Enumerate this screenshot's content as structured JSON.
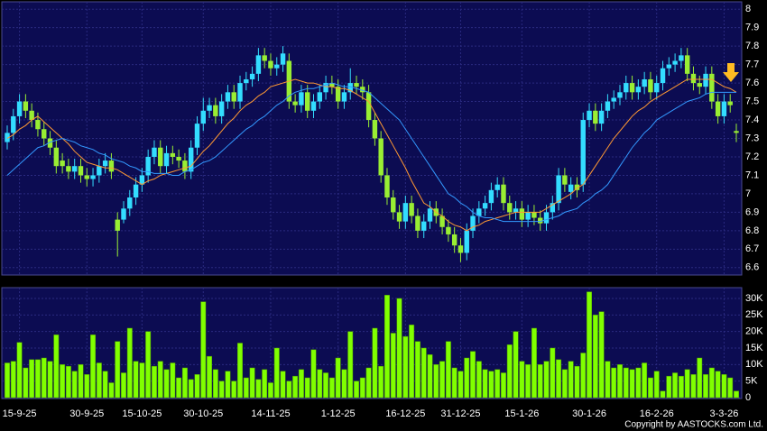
{
  "chart_data": {
    "type": "candlestick",
    "categories": [
      null,
      null,
      "15-9-25",
      null,
      null,
      null,
      null,
      null,
      null,
      null,
      null,
      null,
      null,
      "30-9-25",
      null,
      null,
      null,
      null,
      null,
      null,
      null,
      null,
      "15-10-25",
      null,
      null,
      null,
      null,
      null,
      null,
      null,
      null,
      null,
      "30-10-25",
      null,
      null,
      null,
      null,
      null,
      null,
      null,
      null,
      null,
      null,
      "14-11-25",
      null,
      null,
      null,
      null,
      null,
      null,
      null,
      null,
      null,
      null,
      "1-12-25",
      null,
      null,
      null,
      null,
      null,
      null,
      null,
      null,
      null,
      null,
      "16-12-25",
      null,
      null,
      null,
      null,
      null,
      null,
      null,
      null,
      "31-12-25",
      null,
      null,
      null,
      null,
      null,
      null,
      null,
      null,
      null,
      "15-1-26",
      null,
      null,
      null,
      null,
      null,
      null,
      null,
      null,
      null,
      null,
      "30-1-26",
      null,
      null,
      null,
      null,
      null,
      null,
      null,
      null,
      null,
      null,
      "16-2-26",
      null,
      null,
      null,
      null,
      null,
      null,
      null,
      null,
      null,
      null,
      "3-3-26",
      null,
      null
    ],
    "ohlc": [
      [
        7.28,
        7.37,
        7.24,
        7.33
      ],
      [
        7.33,
        7.46,
        7.29,
        7.42
      ],
      [
        7.42,
        7.54,
        7.38,
        7.5
      ],
      [
        7.5,
        7.54,
        7.41,
        7.45
      ],
      [
        7.45,
        7.49,
        7.36,
        7.4
      ],
      [
        7.4,
        7.44,
        7.31,
        7.35
      ],
      [
        7.35,
        7.39,
        7.26,
        7.3
      ],
      [
        7.3,
        7.34,
        7.21,
        7.25
      ],
      [
        7.25,
        7.29,
        7.11,
        7.15
      ],
      [
        7.18,
        7.22,
        7.11,
        7.15
      ],
      [
        7.15,
        7.19,
        7.08,
        7.12
      ],
      [
        7.12,
        7.19,
        7.08,
        7.15
      ],
      [
        7.15,
        7.19,
        7.06,
        7.1
      ],
      [
        7.1,
        7.14,
        7.04,
        7.08
      ],
      [
        7.08,
        7.14,
        7.04,
        7.1
      ],
      [
        7.1,
        7.19,
        7.06,
        7.15
      ],
      [
        7.15,
        7.22,
        7.11,
        7.18
      ],
      [
        7.18,
        7.22,
        7.08,
        7.12
      ],
      [
        6.86,
        6.9,
        6.66,
        6.8
      ],
      [
        6.86,
        6.96,
        6.84,
        6.92
      ],
      [
        6.92,
        7.02,
        6.88,
        6.98
      ],
      [
        6.98,
        7.09,
        6.94,
        7.05
      ],
      [
        7.05,
        7.14,
        7.01,
        7.1
      ],
      [
        7.1,
        7.24,
        7.06,
        7.2
      ],
      [
        7.2,
        7.29,
        7.16,
        7.25
      ],
      [
        7.25,
        7.29,
        7.11,
        7.15
      ],
      [
        7.15,
        7.26,
        7.11,
        7.22
      ],
      [
        7.22,
        7.26,
        7.16,
        7.2
      ],
      [
        7.2,
        7.24,
        7.14,
        7.18
      ],
      [
        7.18,
        7.22,
        7.08,
        7.12
      ],
      [
        7.12,
        7.29,
        7.08,
        7.25
      ],
      [
        7.25,
        7.42,
        7.21,
        7.38
      ],
      [
        7.38,
        7.52,
        7.34,
        7.45
      ],
      [
        7.45,
        7.52,
        7.41,
        7.48
      ],
      [
        7.48,
        7.52,
        7.38,
        7.42
      ],
      [
        7.42,
        7.54,
        7.38,
        7.5
      ],
      [
        7.5,
        7.59,
        7.46,
        7.55
      ],
      [
        7.55,
        7.59,
        7.46,
        7.5
      ],
      [
        7.5,
        7.64,
        7.46,
        7.6
      ],
      [
        7.6,
        7.66,
        7.56,
        7.62
      ],
      [
        7.62,
        7.69,
        7.58,
        7.65
      ],
      [
        7.65,
        7.79,
        7.61,
        7.75
      ],
      [
        7.75,
        7.79,
        7.68,
        7.72
      ],
      [
        7.72,
        7.76,
        7.64,
        7.68
      ],
      [
        7.68,
        7.74,
        7.64,
        7.7
      ],
      [
        7.7,
        7.8,
        7.66,
        7.76
      ],
      [
        7.72,
        7.76,
        7.46,
        7.5
      ],
      [
        7.5,
        7.54,
        7.44,
        7.48
      ],
      [
        7.48,
        7.59,
        7.44,
        7.55
      ],
      [
        7.55,
        7.59,
        7.41,
        7.45
      ],
      [
        7.45,
        7.54,
        7.41,
        7.5
      ],
      [
        7.5,
        7.59,
        7.46,
        7.55
      ],
      [
        7.55,
        7.64,
        7.51,
        7.6
      ],
      [
        7.6,
        7.64,
        7.54,
        7.58
      ],
      [
        7.58,
        7.62,
        7.46,
        7.5
      ],
      [
        7.5,
        7.59,
        7.46,
        7.55
      ],
      [
        7.55,
        7.68,
        7.51,
        7.6
      ],
      [
        7.6,
        7.64,
        7.54,
        7.58
      ],
      [
        7.58,
        7.62,
        7.51,
        7.55
      ],
      [
        7.55,
        7.59,
        7.36,
        7.4
      ],
      [
        7.4,
        7.44,
        7.26,
        7.3
      ],
      [
        7.3,
        7.34,
        7.06,
        7.1
      ],
      [
        7.1,
        7.14,
        6.94,
        6.98
      ],
      [
        6.98,
        7.02,
        6.86,
        6.9
      ],
      [
        6.9,
        6.94,
        6.81,
        6.85
      ],
      [
        6.85,
        6.99,
        6.81,
        6.95
      ],
      [
        6.95,
        6.99,
        6.84,
        6.88
      ],
      [
        6.88,
        6.92,
        6.76,
        6.8
      ],
      [
        6.8,
        6.89,
        6.76,
        6.85
      ],
      [
        6.85,
        6.96,
        6.81,
        6.92
      ],
      [
        6.92,
        6.96,
        6.84,
        6.88
      ],
      [
        6.88,
        6.92,
        6.78,
        6.82
      ],
      [
        6.82,
        6.86,
        6.74,
        6.78
      ],
      [
        6.78,
        6.82,
        6.68,
        6.72
      ],
      [
        6.72,
        6.76,
        6.63,
        6.68
      ],
      [
        6.68,
        6.84,
        6.64,
        6.8
      ],
      [
        6.8,
        6.92,
        6.76,
        6.88
      ],
      [
        6.88,
        6.96,
        6.84,
        6.92
      ],
      [
        6.92,
        6.99,
        6.88,
        6.95
      ],
      [
        6.95,
        7.06,
        6.91,
        7.02
      ],
      [
        7.02,
        7.09,
        6.98,
        7.05
      ],
      [
        7.05,
        7.09,
        6.91,
        6.95
      ],
      [
        6.95,
        6.99,
        6.86,
        6.9
      ],
      [
        6.9,
        6.96,
        6.86,
        6.92
      ],
      [
        6.92,
        6.96,
        6.82,
        6.86
      ],
      [
        6.86,
        6.94,
        6.82,
        6.9
      ],
      [
        6.9,
        6.94,
        6.83,
        6.87
      ],
      [
        6.87,
        6.91,
        6.8,
        6.84
      ],
      [
        6.84,
        6.94,
        6.8,
        6.9
      ],
      [
        6.9,
        6.99,
        6.86,
        6.95
      ],
      [
        6.95,
        7.14,
        6.91,
        7.1
      ],
      [
        7.1,
        7.14,
        7.01,
        7.05
      ],
      [
        7.01,
        7.09,
        6.97,
        7.05
      ],
      [
        7.05,
        7.09,
        6.98,
        7.02
      ],
      [
        7.05,
        7.44,
        7.01,
        7.4
      ],
      [
        7.4,
        7.49,
        7.36,
        7.45
      ],
      [
        7.45,
        7.49,
        7.34,
        7.38
      ],
      [
        7.38,
        7.49,
        7.34,
        7.45
      ],
      [
        7.45,
        7.54,
        7.41,
        7.5
      ],
      [
        7.5,
        7.56,
        7.46,
        7.52
      ],
      [
        7.52,
        7.59,
        7.48,
        7.55
      ],
      [
        7.55,
        7.64,
        7.51,
        7.6
      ],
      [
        7.6,
        7.64,
        7.51,
        7.55
      ],
      [
        7.55,
        7.62,
        7.51,
        7.58
      ],
      [
        7.58,
        7.66,
        7.54,
        7.62
      ],
      [
        7.62,
        7.66,
        7.51,
        7.55
      ],
      [
        7.55,
        7.64,
        7.51,
        7.6
      ],
      [
        7.6,
        7.72,
        7.56,
        7.68
      ],
      [
        7.68,
        7.74,
        7.64,
        7.7
      ],
      [
        7.7,
        7.76,
        7.66,
        7.72
      ],
      [
        7.72,
        7.79,
        7.68,
        7.75
      ],
      [
        7.75,
        7.79,
        7.61,
        7.65
      ],
      [
        7.65,
        7.69,
        7.56,
        7.6
      ],
      [
        7.6,
        7.64,
        7.54,
        7.58
      ],
      [
        7.58,
        7.69,
        7.54,
        7.65
      ],
      [
        7.65,
        7.69,
        7.46,
        7.5
      ],
      [
        7.5,
        7.54,
        7.38,
        7.42
      ],
      [
        7.42,
        7.54,
        7.38,
        7.5
      ],
      [
        7.5,
        7.54,
        7.44,
        7.48
      ],
      [
        7.34,
        7.38,
        7.28,
        7.33
      ]
    ],
    "up_color": "#33ddff",
    "down_color": "#99ee33",
    "lines": [
      {
        "color": "#ff9933",
        "values": [
          7.3,
          7.32,
          7.35,
          7.37,
          7.4,
          7.42,
          7.39,
          7.36,
          7.33,
          7.3,
          7.27,
          7.23,
          7.2,
          7.17,
          7.16,
          7.15,
          7.14,
          7.14,
          7.13,
          7.11,
          7.09,
          7.07,
          7.05,
          7.07,
          7.08,
          7.1,
          7.11,
          7.12,
          7.13,
          7.14,
          7.15,
          7.19,
          7.23,
          7.26,
          7.3,
          7.34,
          7.38,
          7.41,
          7.45,
          7.48,
          7.5,
          7.53,
          7.55,
          7.58,
          7.59,
          7.6,
          7.61,
          7.62,
          7.61,
          7.6,
          7.6,
          7.59,
          7.58,
          7.58,
          7.57,
          7.57,
          7.56,
          7.54,
          7.52,
          7.5,
          7.44,
          7.38,
          7.32,
          7.26,
          7.2,
          7.14,
          7.07,
          7.01,
          6.95,
          6.93,
          6.9,
          6.88,
          6.85,
          6.83,
          6.82,
          6.8,
          6.82,
          6.83,
          6.85,
          6.86,
          6.87,
          6.88,
          6.89,
          6.9,
          6.9,
          6.9,
          6.9,
          6.9,
          6.92,
          6.94,
          6.96,
          6.98,
          7.0,
          7.03,
          7.05,
          7.1,
          7.15,
          7.2,
          7.25,
          7.3,
          7.34,
          7.38,
          7.42,
          7.45,
          7.47,
          7.5,
          7.52,
          7.54,
          7.56,
          7.58,
          7.6,
          7.62,
          7.62,
          7.62,
          7.62,
          7.62,
          7.6,
          7.58,
          7.57,
          7.55
        ]
      },
      {
        "color": "#3399ff",
        "values": [
          7.1,
          7.13,
          7.16,
          7.19,
          7.22,
          7.25,
          7.26,
          7.28,
          7.29,
          7.3,
          7.29,
          7.28,
          7.26,
          7.25,
          7.24,
          7.22,
          7.21,
          7.19,
          7.18,
          7.17,
          7.15,
          7.14,
          7.12,
          7.12,
          7.11,
          7.11,
          7.11,
          7.1,
          7.1,
          7.12,
          7.13,
          7.15,
          7.17,
          7.18,
          7.2,
          7.23,
          7.26,
          7.29,
          7.32,
          7.35,
          7.37,
          7.4,
          7.42,
          7.45,
          7.48,
          7.5,
          7.53,
          7.55,
          7.56,
          7.57,
          7.57,
          7.58,
          7.59,
          7.6,
          7.59,
          7.58,
          7.58,
          7.57,
          7.56,
          7.55,
          7.52,
          7.49,
          7.46,
          7.43,
          7.4,
          7.35,
          7.3,
          7.25,
          7.2,
          7.15,
          7.1,
          7.05,
          7.0,
          6.98,
          6.95,
          6.93,
          6.9,
          6.88,
          6.87,
          6.87,
          6.86,
          6.85,
          6.85,
          6.85,
          6.85,
          6.85,
          6.85,
          6.85,
          6.86,
          6.87,
          6.88,
          6.9,
          6.91,
          6.92,
          6.95,
          6.97,
          7.0,
          7.02,
          7.05,
          7.1,
          7.15,
          7.2,
          7.25,
          7.29,
          7.33,
          7.36,
          7.4,
          7.42,
          7.44,
          7.46,
          7.48,
          7.5,
          7.51,
          7.52,
          7.54,
          7.55,
          7.55,
          7.55,
          7.55,
          7.55
        ]
      }
    ],
    "ylim": [
      6.56,
      8.04
    ],
    "yticks": [
      8,
      7.9,
      7.8,
      7.7,
      7.6,
      7.5,
      7.4,
      7.3,
      7.2,
      7.1,
      7,
      6.9,
      6.8,
      6.7,
      6.6
    ],
    "grid": true,
    "volume": {
      "color": "#80ff00",
      "values": [
        10500,
        11000,
        16700,
        9000,
        11500,
        11500,
        12000,
        11000,
        19000,
        10000,
        9500,
        8000,
        10000,
        7000,
        19000,
        10500,
        8000,
        4500,
        17000,
        7500,
        21000,
        11000,
        10500,
        20000,
        9500,
        11000,
        8500,
        10500,
        6000,
        9000,
        5500,
        7000,
        29000,
        12500,
        8500,
        5000,
        8000,
        5000,
        16500,
        6000,
        9000,
        5500,
        8500,
        4500,
        15000,
        8000,
        5000,
        6500,
        8500,
        6000,
        14500,
        8500,
        7500,
        6000,
        12000,
        8500,
        20000,
        5000,
        6000,
        9000,
        21000,
        9500,
        31000,
        19500,
        30000,
        18500,
        22000,
        17000,
        15000,
        13000,
        10000,
        11000,
        17000,
        9000,
        8000,
        12000,
        14000,
        11000,
        8500,
        8000,
        8500,
        7500,
        16000,
        20000,
        11000,
        10000,
        21000,
        10000,
        11000,
        15000,
        11500,
        8500,
        11000,
        9500,
        13500,
        32000,
        25000,
        26000,
        11000,
        9000,
        10000,
        9000,
        8500,
        9000,
        10500,
        6000,
        8000,
        2000,
        6500,
        7500,
        6500,
        8500,
        7000,
        12000,
        7000,
        9000,
        8000,
        7000,
        6000,
        2000
      ],
      "ylim": [
        0,
        33000
      ],
      "yticks": [
        0,
        {
          "value": 5000,
          "label": "5K"
        },
        {
          "value": 10000,
          "label": "10K"
        },
        {
          "value": 15000,
          "label": "15K"
        },
        {
          "value": 20000,
          "label": "20K"
        },
        {
          "value": 25000,
          "label": "25K"
        },
        {
          "value": 30000,
          "label": "30K"
        }
      ]
    },
    "copyright": "Copyright by AASTOCKS.com Ltd."
  }
}
